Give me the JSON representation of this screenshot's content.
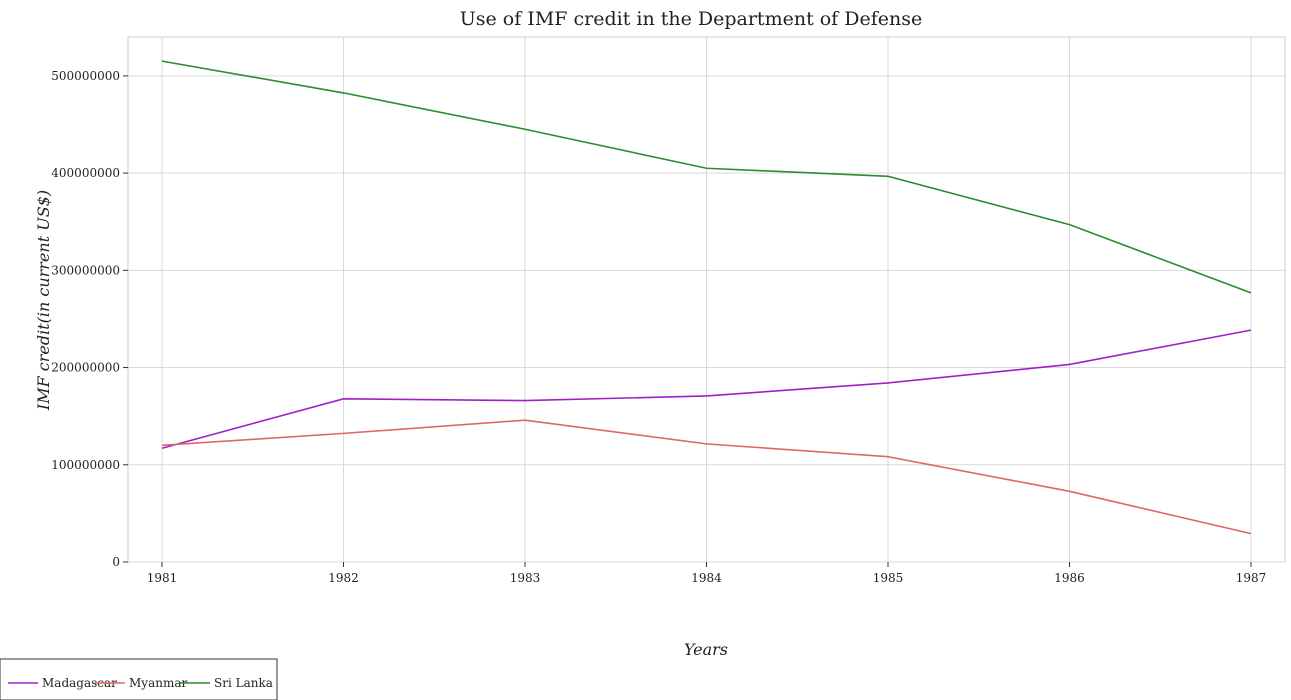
{
  "chart_data": {
    "type": "line",
    "title": "Use of IMF credit in the Department of Defense",
    "xlabel": "Years",
    "ylabel": "IMF credit(in current US$)",
    "categories": [
      "1981",
      "1982",
      "1983",
      "1984",
      "1985",
      "1986",
      "1987"
    ],
    "ylim": [
      0,
      540000000
    ],
    "yticks": [
      0,
      100000000,
      200000000,
      300000000,
      400000000,
      500000000
    ],
    "ytick_labels": [
      "0",
      "100000000",
      "200000000",
      "300000000",
      "400000000",
      "500000000"
    ],
    "grid": true,
    "legend_position": "bottom-left",
    "series": [
      {
        "name": "Madagascar",
        "color": "#a020c8",
        "values": [
          117000000,
          167800000,
          166000000,
          170800000,
          184200000,
          203200000,
          238500000
        ]
      },
      {
        "name": "Myanmar",
        "color": "#e06666",
        "values": [
          120000000,
          132300000,
          145900000,
          121500000,
          108300000,
          72700000,
          29200000
        ]
      },
      {
        "name": "Sri Lanka",
        "color": "#2e8b2e",
        "values": [
          515200000,
          482500000,
          445100000,
          405000000,
          396700000,
          347000000,
          276800000
        ]
      }
    ]
  }
}
